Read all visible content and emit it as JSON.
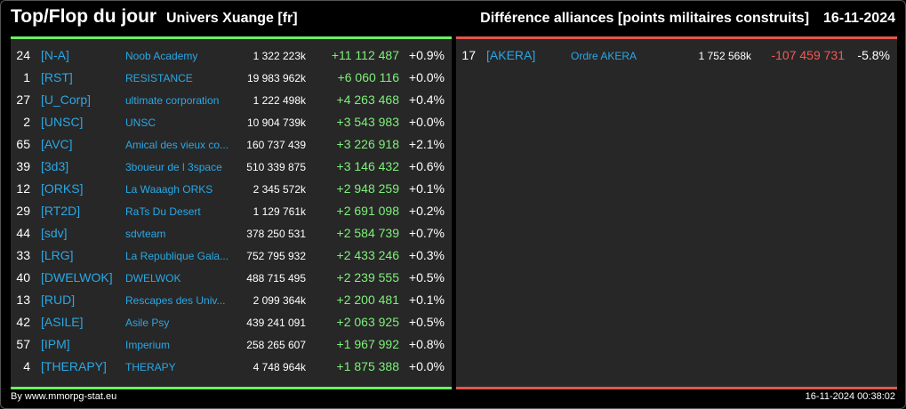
{
  "header": {
    "title": "Top/Flop du jour",
    "universe": "Univers Xuange [fr]",
    "subject": "Différence alliances [points militaires construits]",
    "date": "16-11-2024"
  },
  "colors": {
    "top_accent": "#6cf05f",
    "flop_accent": "#e4564e",
    "tag_color": "#29a8e6",
    "positive": "#7ef07a",
    "negative": "#f25a54"
  },
  "top": [
    {
      "rank": "24",
      "tag": "[N-A]",
      "name": "Noob Academy",
      "points": "1 322 223k",
      "diff": "+11 112 487",
      "pct": "+0.9%"
    },
    {
      "rank": "1",
      "tag": "[RST]",
      "name": "RESISTANCE",
      "points": "19 983 962k",
      "diff": "+6 060 116",
      "pct": "+0.0%"
    },
    {
      "rank": "27",
      "tag": "[U_Corp]",
      "name": "ultimate corporation",
      "points": "1 222 498k",
      "diff": "+4 263 468",
      "pct": "+0.4%"
    },
    {
      "rank": "2",
      "tag": "[UNSC]",
      "name": "UNSC",
      "points": "10 904 739k",
      "diff": "+3 543 983",
      "pct": "+0.0%"
    },
    {
      "rank": "65",
      "tag": "[AVC]",
      "name": "Amical des vieux co...",
      "points": "160 737 439",
      "diff": "+3 226 918",
      "pct": "+2.1%"
    },
    {
      "rank": "39",
      "tag": "[3d3]",
      "name": "3boueur de l 3space",
      "points": "510 339 875",
      "diff": "+3 146 432",
      "pct": "+0.6%"
    },
    {
      "rank": "12",
      "tag": "[ORKS]",
      "name": "La Waaagh ORKS",
      "points": "2 345 572k",
      "diff": "+2 948 259",
      "pct": "+0.1%"
    },
    {
      "rank": "29",
      "tag": "[RT2D]",
      "name": "RaTs Du Desert",
      "points": "1 129 761k",
      "diff": "+2 691 098",
      "pct": "+0.2%"
    },
    {
      "rank": "44",
      "tag": "[sdv]",
      "name": "sdvteam",
      "points": "378 250 531",
      "diff": "+2 584 739",
      "pct": "+0.7%"
    },
    {
      "rank": "33",
      "tag": "[LRG]",
      "name": "La Republique Gala...",
      "points": "752 795 932",
      "diff": "+2 433 246",
      "pct": "+0.3%"
    },
    {
      "rank": "40",
      "tag": "[DWELWOK]",
      "name": "DWELWOK",
      "points": "488 715 495",
      "diff": "+2 239 555",
      "pct": "+0.5%"
    },
    {
      "rank": "13",
      "tag": "[RUD]",
      "name": "Rescapes des Univ...",
      "points": "2 099 364k",
      "diff": "+2 200 481",
      "pct": "+0.1%"
    },
    {
      "rank": "42",
      "tag": "[ASILE]",
      "name": "Asile Psy",
      "points": "439 241 091",
      "diff": "+2 063 925",
      "pct": "+0.5%"
    },
    {
      "rank": "57",
      "tag": "[IPM]",
      "name": "Imperium",
      "points": "258 265 607",
      "diff": "+1 967 992",
      "pct": "+0.8%"
    },
    {
      "rank": "4",
      "tag": "[THERAPY]",
      "name": "THERAPY",
      "points": "4 748 964k",
      "diff": "+1 875 388",
      "pct": "+0.0%"
    }
  ],
  "flop": [
    {
      "rank": "17",
      "tag": "[AKERA]",
      "name": "Ordre AKERA",
      "points": "1 752 568k",
      "diff": "-107 459 731",
      "pct": "-5.8%"
    }
  ],
  "footer": {
    "source": "By www.mmorpg-stat.eu",
    "timestamp": "16-11-2024 00:38:02"
  }
}
